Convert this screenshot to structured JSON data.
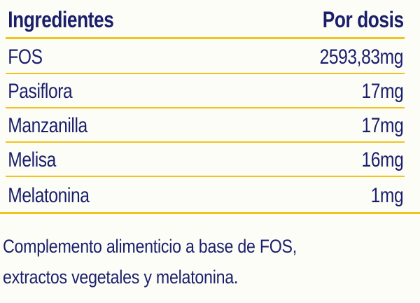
{
  "table": {
    "header": {
      "ingredient_label": "Ingredientes",
      "dose_label": "Por dosis"
    },
    "rows": [
      {
        "ingredient": "FOS",
        "dose": "2593,83mg"
      },
      {
        "ingredient": "Pasiflora",
        "dose": "17mg"
      },
      {
        "ingredient": "Manzanilla",
        "dose": "17mg"
      },
      {
        "ingredient": "Melisa",
        "dose": "16mg"
      },
      {
        "ingredient": "Melatonina",
        "dose": "1mg"
      }
    ]
  },
  "footer": {
    "line1": "Complemento alimenticio a base de FOS,",
    "line2": "extractos vegetales y melatonina."
  },
  "colors": {
    "text": "#1b1f6b",
    "rule": "#f2c31a",
    "background": "#fdfdf8"
  }
}
